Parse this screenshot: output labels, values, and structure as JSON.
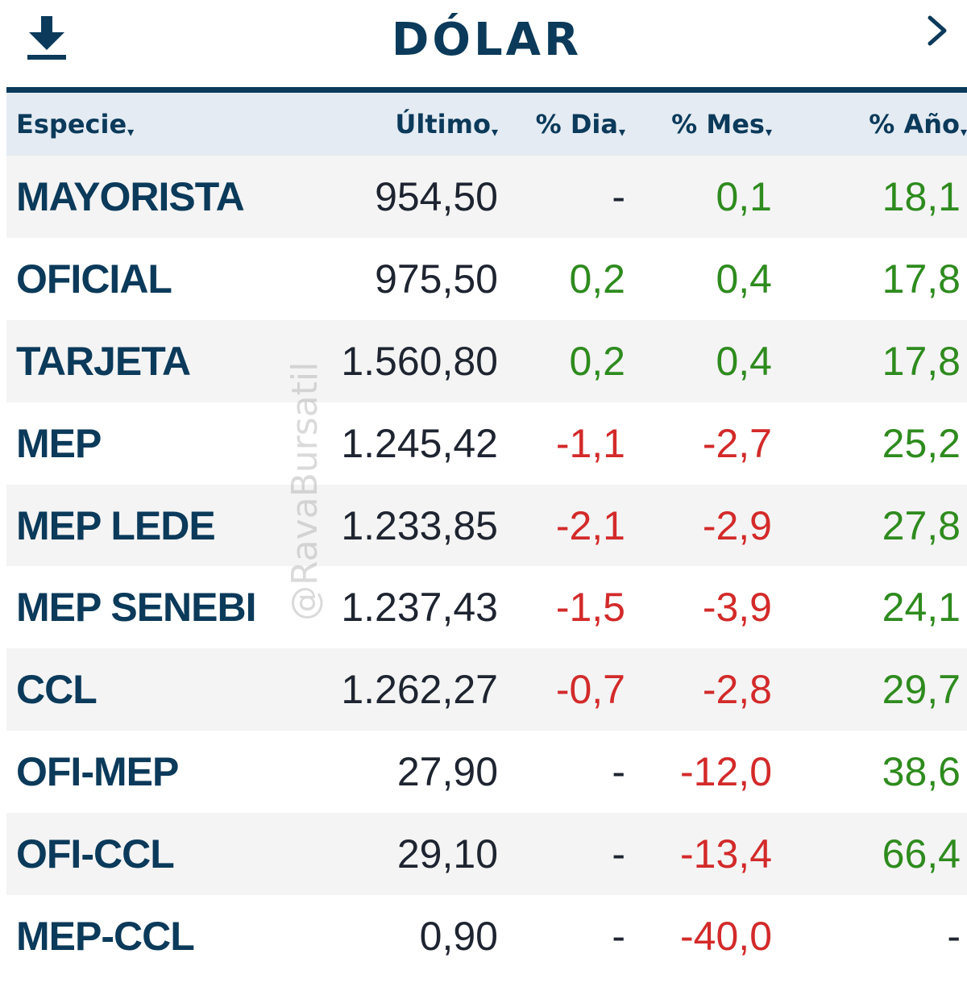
{
  "header": {
    "title": "DÓLAR",
    "download_icon": "download-icon",
    "next_icon": "chevron-right-icon"
  },
  "columns": [
    {
      "label": "Especie",
      "sort": "▾"
    },
    {
      "label": "Último",
      "sort": "▾"
    },
    {
      "label": "% Dia",
      "sort": "▾"
    },
    {
      "label": "% Mes",
      "sort": "▾"
    },
    {
      "label": "% Año",
      "sort": "▾"
    }
  ],
  "rows": [
    {
      "name": "MAYORISTA",
      "last": "954,50",
      "dia": "-",
      "mes": "0,1",
      "ano": "18,1",
      "dia_status": "neutral",
      "mes_status": "pos",
      "ano_status": "pos"
    },
    {
      "name": "OFICIAL",
      "last": "975,50",
      "dia": "0,2",
      "mes": "0,4",
      "ano": "17,8",
      "dia_status": "pos",
      "mes_status": "pos",
      "ano_status": "pos"
    },
    {
      "name": "TARJETA",
      "last": "1.560,80",
      "dia": "0,2",
      "mes": "0,4",
      "ano": "17,8",
      "dia_status": "pos",
      "mes_status": "pos",
      "ano_status": "pos"
    },
    {
      "name": "MEP",
      "last": "1.245,42",
      "dia": "-1,1",
      "mes": "-2,7",
      "ano": "25,2",
      "dia_status": "neg",
      "mes_status": "neg",
      "ano_status": "pos"
    },
    {
      "name": "MEP LEDE",
      "last": "1.233,85",
      "dia": "-2,1",
      "mes": "-2,9",
      "ano": "27,8",
      "dia_status": "neg",
      "mes_status": "neg",
      "ano_status": "pos"
    },
    {
      "name": "MEP SENEBI",
      "last": "1.237,43",
      "dia": "-1,5",
      "mes": "-3,9",
      "ano": "24,1",
      "dia_status": "neg",
      "mes_status": "neg",
      "ano_status": "pos"
    },
    {
      "name": "CCL",
      "last": "1.262,27",
      "dia": "-0,7",
      "mes": "-2,8",
      "ano": "29,7",
      "dia_status": "neg",
      "mes_status": "neg",
      "ano_status": "pos"
    },
    {
      "name": "OFI-MEP",
      "last": "27,90",
      "dia": "-",
      "mes": "-12,0",
      "ano": "38,6",
      "dia_status": "neutral",
      "mes_status": "neg",
      "ano_status": "pos"
    },
    {
      "name": "OFI-CCL",
      "last": "29,10",
      "dia": "-",
      "mes": "-13,4",
      "ano": "66,4",
      "dia_status": "neutral",
      "mes_status": "neg",
      "ano_status": "pos"
    },
    {
      "name": "MEP-CCL",
      "last": "0,90",
      "dia": "-",
      "mes": "-40,0",
      "ano": "-",
      "dia_status": "neutral",
      "mes_status": "neg",
      "ano_status": "neutral"
    }
  ],
  "watermark": "@RavaBursatil",
  "colors": {
    "brand": "#0b3a5a",
    "positive": "#2e8b1e",
    "negative": "#d32a2a",
    "header_bg": "#e4ebf2"
  }
}
